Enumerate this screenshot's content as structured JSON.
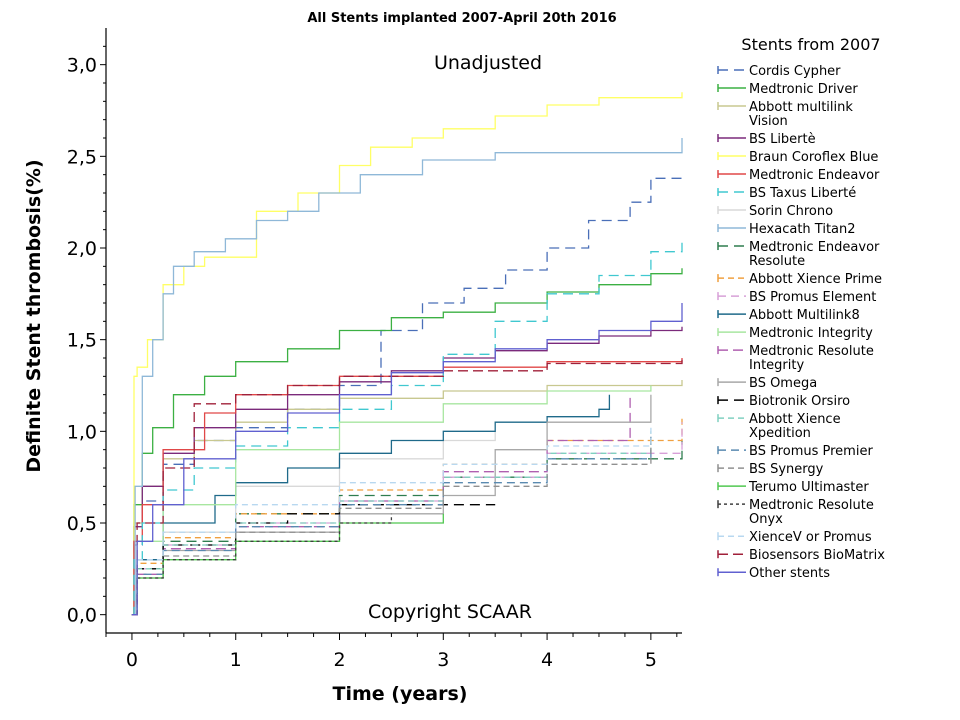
{
  "chart_data": {
    "type": "line",
    "title": "All Stents implanted 2007-April 20th 2016",
    "xlabel": "Time (years)",
    "ylabel": "Definite Stent thrombosis(%)",
    "xlim": [
      -0.25,
      5.3
    ],
    "ylim": [
      -0.1,
      3.2
    ],
    "x_ticks": [
      0,
      1,
      2,
      3,
      4,
      5
    ],
    "x_tick_labels": [
      "0",
      "1",
      "2",
      "3",
      "4",
      "5"
    ],
    "y_ticks": [
      0.0,
      0.5,
      1.0,
      1.5,
      2.0,
      2.5,
      3.0
    ],
    "y_tick_labels": [
      "0,0",
      "0,5",
      "1,0",
      "1,5",
      "2,0",
      "2,5",
      "3,0"
    ],
    "annotations": [
      "Unadjusted",
      "Copyright SCAAR"
    ],
    "legend_title": "Stents from 2007",
    "legend_position": "right",
    "grid": false,
    "series": [
      {
        "name": "Cordis Cypher",
        "color": "#4a6fb8",
        "dash": "10,6",
        "x": [
          0,
          0.02,
          0.1,
          0.3,
          0.6,
          1.0,
          1.5,
          2.0,
          2.4,
          2.8,
          3.2,
          3.6,
          4.0,
          4.4,
          4.8,
          5.0,
          5.3
        ],
        "y": [
          0,
          0.38,
          0.62,
          0.82,
          0.95,
          1.02,
          1.12,
          1.25,
          1.55,
          1.7,
          1.78,
          1.88,
          2.0,
          2.15,
          2.25,
          2.38,
          2.38
        ]
      },
      {
        "name": "Medtronic Driver",
        "color": "#3cb043",
        "dash": "",
        "x": [
          0,
          0.02,
          0.1,
          0.2,
          0.4,
          0.7,
          1.0,
          1.5,
          2.0,
          2.5,
          3.0,
          3.5,
          4.0,
          4.5,
          5.0,
          5.3
        ],
        "y": [
          0,
          0.6,
          0.88,
          1.02,
          1.2,
          1.3,
          1.38,
          1.45,
          1.55,
          1.62,
          1.65,
          1.7,
          1.76,
          1.8,
          1.86,
          1.89
        ]
      },
      {
        "name": "Abbott multilink Vision",
        "color": "#c8c890",
        "dash": "",
        "x": [
          0,
          0.02,
          0.1,
          0.3,
          0.6,
          1.0,
          1.5,
          2.0,
          3.0,
          4.0,
          5.3
        ],
        "y": [
          0,
          0.5,
          0.7,
          0.85,
          0.95,
          1.05,
          1.12,
          1.18,
          1.22,
          1.25,
          1.28
        ]
      },
      {
        "name": "BS Libertè",
        "color": "#7b2a7b",
        "dash": "",
        "x": [
          0,
          0.02,
          0.1,
          0.3,
          0.6,
          1.0,
          1.5,
          2.0,
          2.5,
          3.0,
          3.5,
          4.0,
          4.5,
          5.0,
          5.3
        ],
        "y": [
          0,
          0.48,
          0.7,
          0.88,
          1.02,
          1.12,
          1.2,
          1.27,
          1.33,
          1.4,
          1.44,
          1.48,
          1.52,
          1.55,
          1.57
        ]
      },
      {
        "name": "Braun Coroflex Blue",
        "color": "#ffff66",
        "dash": "",
        "x": [
          0,
          0.02,
          0.05,
          0.15,
          0.3,
          0.5,
          0.7,
          1.2,
          1.6,
          2.0,
          2.3,
          2.7,
          3.0,
          3.5,
          4.0,
          4.5,
          5.3
        ],
        "y": [
          0,
          1.3,
          1.35,
          1.5,
          1.8,
          1.9,
          1.95,
          2.2,
          2.3,
          2.45,
          2.55,
          2.6,
          2.65,
          2.72,
          2.78,
          2.82,
          2.85
        ]
      },
      {
        "name": "Medtronic Endeavor",
        "color": "#e04848",
        "dash": "",
        "x": [
          0,
          0.02,
          0.1,
          0.3,
          0.7,
          1.0,
          1.5,
          2.0,
          3.0,
          4.0,
          5.3
        ],
        "y": [
          0,
          0.4,
          0.6,
          0.9,
          1.1,
          1.2,
          1.25,
          1.3,
          1.35,
          1.38,
          1.4
        ]
      },
      {
        "name": "BS Taxus Liberté",
        "color": "#40c8d0",
        "dash": "10,6",
        "x": [
          0,
          0.02,
          0.1,
          0.3,
          0.6,
          1.0,
          1.5,
          2.0,
          2.5,
          3.0,
          3.5,
          4.0,
          4.5,
          5.0,
          5.3
        ],
        "y": [
          0,
          0.3,
          0.5,
          0.68,
          0.8,
          0.92,
          1.02,
          1.12,
          1.25,
          1.42,
          1.6,
          1.75,
          1.85,
          1.98,
          2.05
        ]
      },
      {
        "name": "Sorin Chrono",
        "color": "#d9d9d9",
        "dash": "",
        "x": [
          0,
          0.05,
          0.3,
          1.0,
          2.0,
          3.0,
          3.5
        ],
        "y": [
          0,
          0.3,
          0.45,
          0.7,
          0.85,
          0.95,
          1.0
        ]
      },
      {
        "name": "Hexacath Titan2",
        "color": "#8fb8d8",
        "dash": "",
        "x": [
          0,
          0.03,
          0.1,
          0.2,
          0.3,
          0.4,
          0.6,
          0.9,
          1.2,
          1.5,
          1.8,
          2.2,
          2.8,
          3.5,
          4.5,
          5.0,
          5.3
        ],
        "y": [
          0,
          0.7,
          1.3,
          1.5,
          1.75,
          1.9,
          1.98,
          2.05,
          2.15,
          2.2,
          2.3,
          2.4,
          2.48,
          2.52,
          2.52,
          2.52,
          2.6
        ]
      },
      {
        "name": "Medtronic Endeavor Resolute",
        "color": "#2e7d4f",
        "dash": "10,6",
        "x": [
          0,
          0.05,
          0.3,
          1.0,
          2.0,
          3.0,
          4.0,
          5.3
        ],
        "y": [
          0,
          0.25,
          0.4,
          0.55,
          0.65,
          0.75,
          0.85,
          0.95
        ]
      },
      {
        "name": "Abbott Xience Prime",
        "color": "#f0a040",
        "dash": "6,4",
        "x": [
          0,
          0.05,
          0.3,
          1.0,
          2.0,
          3.0,
          4.0,
          5.3
        ],
        "y": [
          0,
          0.28,
          0.42,
          0.55,
          0.68,
          0.82,
          0.95,
          1.08
        ]
      },
      {
        "name": "BS Promus Element",
        "color": "#d8a0d8",
        "dash": "8,5",
        "x": [
          0,
          0.05,
          0.3,
          1.0,
          2.0,
          3.0,
          4.0,
          5.3
        ],
        "y": [
          0,
          0.25,
          0.38,
          0.5,
          0.62,
          0.75,
          0.88,
          1.05
        ]
      },
      {
        "name": "Abbott Multilink8",
        "color": "#1f6a8a",
        "dash": "",
        "x": [
          0,
          0.05,
          0.3,
          0.8,
          1.0,
          1.5,
          2.0,
          2.5,
          3.0,
          3.5,
          4.0,
          4.5,
          4.6
        ],
        "y": [
          0,
          0.3,
          0.5,
          0.65,
          0.72,
          0.8,
          0.88,
          0.95,
          1.0,
          1.05,
          1.08,
          1.12,
          1.2
        ]
      },
      {
        "name": "Medtronic Integrity",
        "color": "#a8e6a0",
        "dash": "",
        "x": [
          0,
          0.05,
          0.3,
          1.0,
          2.0,
          3.0,
          4.0,
          5.0
        ],
        "y": [
          0,
          0.4,
          0.6,
          0.9,
          1.05,
          1.15,
          1.22,
          1.25
        ]
      },
      {
        "name": "Medtronic Resolute Integrity",
        "color": "#b060b0",
        "dash": "10,5",
        "x": [
          0,
          0.05,
          0.3,
          1.0,
          2.0,
          3.0,
          4.0,
          4.8
        ],
        "y": [
          0,
          0.22,
          0.36,
          0.48,
          0.62,
          0.78,
          0.95,
          1.2
        ]
      },
      {
        "name": "BS Omega",
        "color": "#a8a8a8",
        "dash": "",
        "x": [
          0,
          0.05,
          0.3,
          1.0,
          2.0,
          3.0,
          3.5,
          4.0,
          5.0
        ],
        "y": [
          0,
          0.2,
          0.35,
          0.45,
          0.55,
          0.65,
          0.9,
          1.05,
          1.2
        ]
      },
      {
        "name": "Biotronik Orsiro",
        "color": "#000000",
        "dash": "10,6",
        "x": [
          0,
          0.05,
          0.3,
          1.0,
          1.5,
          2.0,
          3.0,
          3.5
        ],
        "y": [
          0,
          0.25,
          0.38,
          0.5,
          0.55,
          0.6,
          0.6,
          0.6
        ]
      },
      {
        "name": "Abbott Xience Xpedition",
        "color": "#80d0c0",
        "dash": "6,4",
        "x": [
          0,
          0.05,
          0.3,
          1.0,
          2.0,
          3.0,
          4.0,
          5.0
        ],
        "y": [
          0,
          0.25,
          0.38,
          0.5,
          0.62,
          0.75,
          0.88,
          1.0
        ]
      },
      {
        "name": "BS Promus Premier",
        "color": "#5a8ab0",
        "dash": "8,5",
        "x": [
          0,
          0.05,
          0.3,
          1.0,
          2.0,
          3.0,
          4.0,
          5.0
        ],
        "y": [
          0,
          0.22,
          0.35,
          0.48,
          0.6,
          0.72,
          0.85,
          0.98
        ]
      },
      {
        "name": "BS Synergy",
        "color": "#909090",
        "dash": "6,4",
        "x": [
          0,
          0.05,
          0.3,
          1.0,
          2.0,
          3.0,
          4.0,
          5.0
        ],
        "y": [
          0,
          0.2,
          0.32,
          0.45,
          0.58,
          0.7,
          0.82,
          0.98
        ]
      },
      {
        "name": "Terumo Ultimaster",
        "color": "#50c850",
        "dash": "",
        "x": [
          0,
          0.05,
          0.3,
          1.0,
          2.0,
          3.0
        ],
        "y": [
          0,
          0.2,
          0.3,
          0.4,
          0.5,
          0.55
        ]
      },
      {
        "name": "Medtronic Resolute Onyx",
        "color": "#404040",
        "dash": "3,3",
        "x": [
          0,
          0.05,
          0.3,
          1.0,
          2.0,
          2.5
        ],
        "y": [
          0,
          0.2,
          0.3,
          0.4,
          0.5,
          0.55
        ]
      },
      {
        "name": "XienceV or Promus",
        "color": "#b8d8f0",
        "dash": "6,4",
        "x": [
          0,
          0.05,
          0.3,
          1.0,
          2.0,
          3.0,
          4.0,
          5.0
        ],
        "y": [
          0,
          0.3,
          0.45,
          0.6,
          0.72,
          0.82,
          0.92,
          1.02
        ]
      },
      {
        "name": "Biosensors BioMatrix",
        "color": "#a0203a",
        "dash": "10,5",
        "x": [
          0,
          0.05,
          0.3,
          0.6,
          1.0,
          1.5,
          2.0,
          3.0,
          4.0,
          5.3
        ],
        "y": [
          0,
          0.5,
          0.8,
          1.15,
          1.2,
          1.25,
          1.3,
          1.33,
          1.37,
          1.4
        ]
      },
      {
        "name": "Other stents",
        "color": "#6060d0",
        "dash": "",
        "x": [
          0,
          0.05,
          0.2,
          0.5,
          1.0,
          1.5,
          2.0,
          2.5,
          3.0,
          3.5,
          4.0,
          4.5,
          5.0,
          5.3
        ],
        "y": [
          0,
          0.4,
          0.6,
          0.85,
          1.0,
          1.1,
          1.2,
          1.32,
          1.38,
          1.45,
          1.5,
          1.55,
          1.6,
          1.7
        ]
      }
    ]
  }
}
